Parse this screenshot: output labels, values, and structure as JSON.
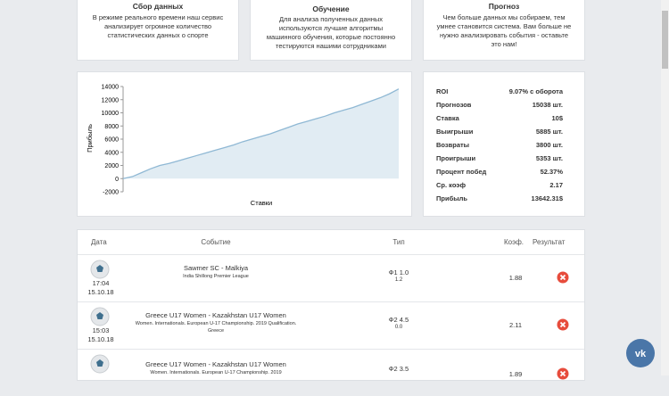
{
  "cards": [
    {
      "title": "Сбор данных",
      "text": "В режиме реального времени наш сервис анализирует огромное количество статистических данных о спорте"
    },
    {
      "title": "Обучение",
      "text": "Для анализа полученных данных используются лучшие алгоритмы машинного обучения, которые постоянно тестируются нашими сотрудниками"
    },
    {
      "title": "Прогноз",
      "text": "Чем больше данных мы собираем, тем умнее становится система. Вам больше не нужно анализировать события - оставьте это нам!"
    }
  ],
  "chart_data": {
    "type": "area",
    "ylabel": "Прибыль",
    "xlabel": "Ставки",
    "color": "#8fb8d4",
    "fill": "#e1ecf3",
    "values": [
      0,
      300,
      900,
      1500,
      2000,
      2300,
      2700,
      3100,
      3500,
      3900,
      4300,
      4700,
      5100,
      5600,
      6000,
      6400,
      6800,
      7300,
      7800,
      8300,
      8700,
      9100,
      9500,
      10000,
      10400,
      10800,
      11300,
      11800,
      12300,
      12900,
      13642
    ],
    "ylim": [
      -2000,
      14000
    ],
    "yticks": [
      -2000,
      0,
      2000,
      4000,
      6000,
      8000,
      10000,
      12000,
      14000
    ],
    "grid": false
  },
  "stats": [
    [
      "ROI",
      "9.07% с оборота"
    ],
    [
      "Прогнозов",
      "15038 шт."
    ],
    [
      "Ставка",
      "10$"
    ],
    [
      "Выигрыши",
      "5885 шт."
    ],
    [
      "Возвраты",
      "3800 шт."
    ],
    [
      "Проигрыши",
      "5353 шт."
    ],
    [
      "Процент побед",
      "52.37%"
    ],
    [
      "Ср. коэф",
      "2.17"
    ],
    [
      "Прибыль",
      "13642.31$"
    ]
  ],
  "table": {
    "header": [
      "Дата",
      "Событие",
      "Тип",
      "Коэф.",
      "Результат"
    ],
    "rows": [
      {
        "time": "17:04",
        "date": "15.10.18",
        "event": "Sawmer SC - Malkiya",
        "league": "India Shillong Premier League",
        "type": "Ф1 1.0",
        "sub": "1.2",
        "coef": "1.88"
      },
      {
        "time": "15:03",
        "date": "15.10.18",
        "event": "Greece U17 Women - Kazakhstan U17 Women",
        "league": "Women. Internationals. European U-17 Championship. 2019 Qualification. Greece",
        "type": "Ф2 4.5",
        "sub": "0.0",
        "coef": "2.11"
      },
      {
        "event": "Greece U17 Women - Kazakhstan U17 Women",
        "league": "Women. Internationals. European U-17 Championship. 2019",
        "type": "Ф2 3.5",
        "coef": "1.89"
      }
    ]
  }
}
